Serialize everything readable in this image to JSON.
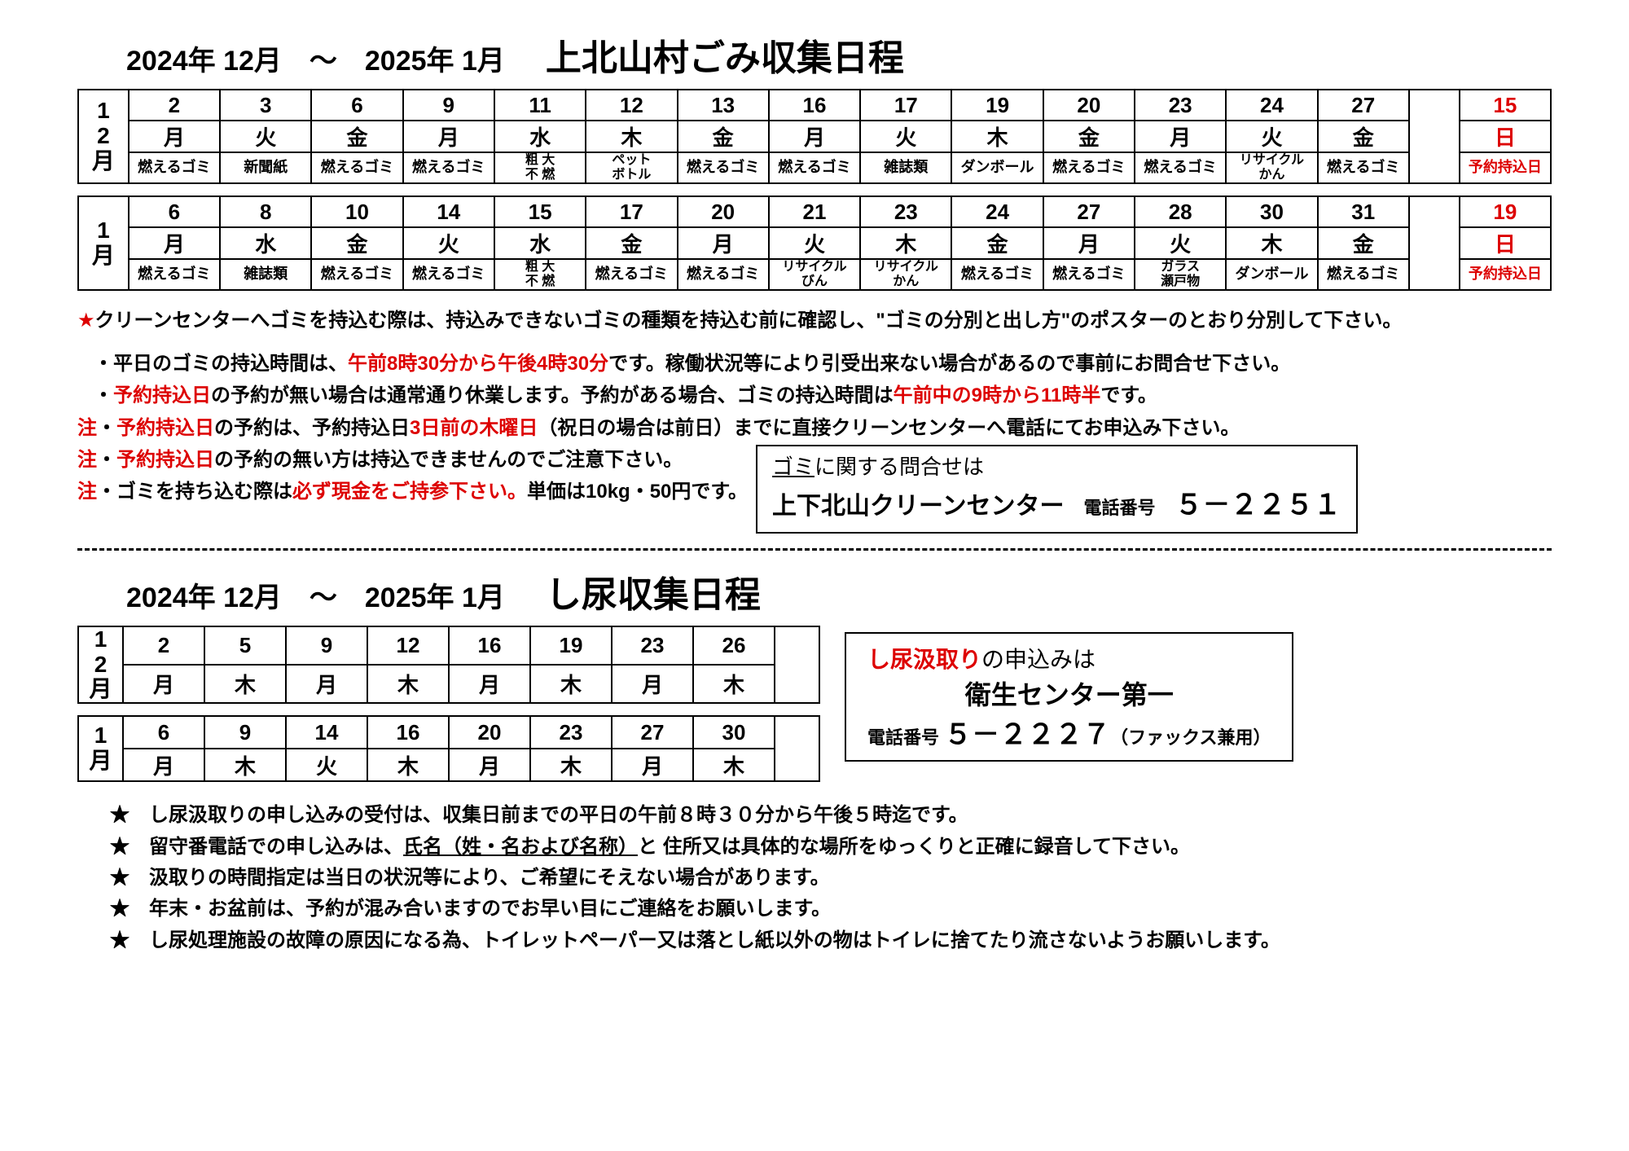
{
  "header1": {
    "date_range": "2024年 12月　～　2025年 1月",
    "title": "上北山村ごみ収集日程"
  },
  "table_dec": {
    "month": "12月",
    "dates": [
      "2",
      "3",
      "6",
      "9",
      "11",
      "12",
      "13",
      "16",
      "17",
      "19",
      "20",
      "23",
      "24",
      "27"
    ],
    "days": [
      "月",
      "火",
      "金",
      "月",
      "水",
      "木",
      "金",
      "月",
      "火",
      "木",
      "金",
      "月",
      "火",
      "金"
    ],
    "cats": [
      "燃えるゴミ",
      "新聞紙",
      "燃えるゴミ",
      "燃えるゴミ",
      "粗 大\n不 燃",
      "ペット\nボトル",
      "燃えるゴミ",
      "燃えるゴミ",
      "雑誌類",
      "ダンボール",
      "燃えるゴミ",
      "燃えるゴミ",
      "リサイクル\nかん",
      "燃えるゴミ"
    ],
    "special_date": "15",
    "special_day": "日",
    "special_cat": "予約持込日"
  },
  "table_jan": {
    "month": "1月",
    "dates": [
      "6",
      "8",
      "10",
      "14",
      "15",
      "17",
      "20",
      "21",
      "23",
      "24",
      "27",
      "28",
      "30",
      "31"
    ],
    "days": [
      "月",
      "水",
      "金",
      "火",
      "水",
      "金",
      "月",
      "火",
      "木",
      "金",
      "月",
      "火",
      "木",
      "金"
    ],
    "cats": [
      "燃えるゴミ",
      "雑誌類",
      "燃えるゴミ",
      "燃えるゴミ",
      "粗 大\n不 燃",
      "燃えるゴミ",
      "燃えるゴミ",
      "リサイクル\nびん",
      "リサイクル\nかん",
      "燃えるゴミ",
      "燃えるゴミ",
      "ガラス\n瀬戸物",
      "ダンボール",
      "燃えるゴミ"
    ],
    "special_date": "19",
    "special_day": "日",
    "special_cat": "予約持込日"
  },
  "notes1": {
    "star": "★",
    "l1": "クリーンセンターへゴミを持込む際は、持込みできないゴミの種類を持込む前に確認し、\"ゴミの分別と出し方\"のポスターのとおり分別して下さい。",
    "l2a": "・平日のゴミの持込時間は、",
    "l2b": "午前8時30分から午後4時30分",
    "l2c": "です。稼働状況等により引受出来ない場合があるので事前にお問合せ下さい。",
    "l3a": "・",
    "l3b": "予約持込日",
    "l3c": "の予約が無い場合は通常通り休業します。予約がある場合、ゴミの持込時間は",
    "l3d": "午前中の9時から11時半",
    "l3e": "です。",
    "l4a": "注",
    "l4b": "・",
    "l4c": "予約持込日",
    "l4d": "の予約は、予約持込日",
    "l4e": "3日前の木曜日",
    "l4f": "（祝日の場合は前日）までに直接クリーンセンターへ電話にてお申込み下さい。",
    "l5a": "注",
    "l5b": "・",
    "l5c": "予約持込日",
    "l5d": "の予約の無い方は持込できませんのでご注意下さい。",
    "l6a": "注",
    "l6b": "・ゴミを持ち込む際は",
    "l6c": "必ず現金をご持参下さい。",
    "l6d": "単価は10kg・50円です。"
  },
  "contact1": {
    "l1a": "ゴミ",
    "l1b": "に関する問合せは",
    "l2": "上下北山クリーンセンター",
    "tel_label": "電話番号",
    "tel": "５－２２５１"
  },
  "header2": {
    "date_range": "2024年 12月　～　2025年 1月",
    "title": "し尿収集日程"
  },
  "table2_dec": {
    "month": "12月",
    "dates": [
      "2",
      "5",
      "9",
      "12",
      "16",
      "19",
      "23",
      "26"
    ],
    "days": [
      "月",
      "木",
      "月",
      "木",
      "月",
      "木",
      "月",
      "木"
    ]
  },
  "table2_jan": {
    "month": "1月",
    "dates": [
      "6",
      "9",
      "14",
      "16",
      "20",
      "23",
      "27",
      "30"
    ],
    "days": [
      "月",
      "木",
      "火",
      "木",
      "月",
      "木",
      "月",
      "木"
    ]
  },
  "contact2": {
    "l1a": "し尿汲取り",
    "l1b": "の申込みは",
    "l2": "衛生センター第一",
    "tel_label": "電話番号",
    "tel": "５－２２２７",
    "fax": "（ファックス兼用）"
  },
  "bullets": {
    "b1": "し尿汲取りの申し込みの受付は、収集日前までの平日の午前８時３０分から午後５時迄です。",
    "b2a": "留守番電話での申し込みは、",
    "b2b": "氏名（姓・名および名称）",
    "b2c": "と 住所又は具体的な場所をゆっくりと正確に録音して下さい。",
    "b3": "汲取りの時間指定は当日の状況等により、ご希望にそえない場合があります。",
    "b4": "年末・お盆前は、予約が混み合いますのでお早い目にご連絡をお願いします。",
    "b5": "し尿処理施設の故障の原因になる為、トイレットペーパー又は落とし紙以外の物はトイレに捨てたり流さないようお願いします。"
  }
}
